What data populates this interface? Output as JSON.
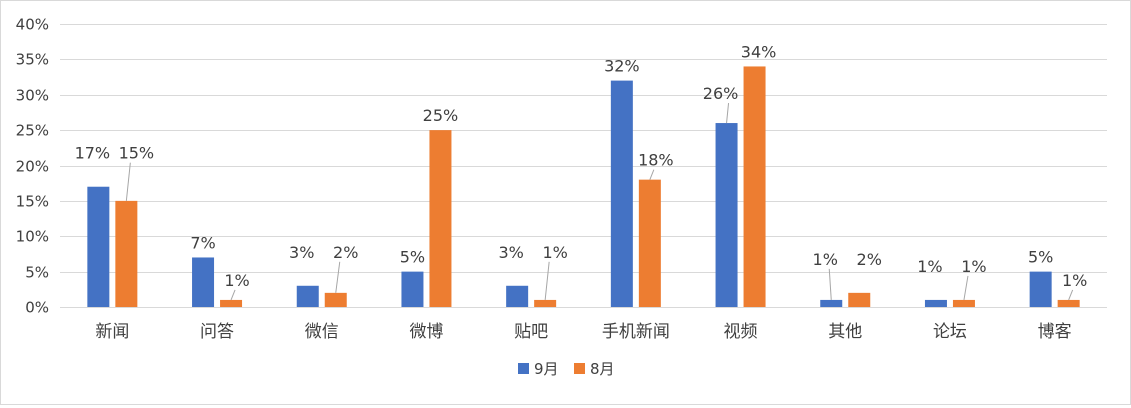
{
  "chart_data": {
    "type": "bar",
    "categories": [
      "新闻",
      "问答",
      "微信",
      "微博",
      "贴吧",
      "手机新闻",
      "视频",
      "其他",
      "论坛",
      "博客"
    ],
    "series": [
      {
        "name": "9月",
        "color": "#4472c4",
        "values": [
          17,
          7,
          3,
          5,
          3,
          32,
          26,
          1,
          1,
          5
        ],
        "labels": [
          "17%",
          "7%",
          "3%",
          "5%",
          "3%",
          "32%",
          "26%",
          "1%",
          "1%",
          "5%"
        ]
      },
      {
        "name": "8月",
        "color": "#ed7d31",
        "values": [
          15,
          1,
          2,
          25,
          1,
          18,
          34,
          2,
          1,
          1
        ],
        "labels": [
          "15%",
          "1%",
          "2%",
          "25%",
          "1%",
          "18%",
          "34%",
          "2%",
          "1%",
          "1%"
        ]
      }
    ],
    "y_ticks": [
      0,
      5,
      10,
      15,
      20,
      25,
      30,
      35,
      40
    ],
    "y_tick_labels": [
      "0%",
      "5%",
      "10%",
      "15%",
      "20%",
      "25%",
      "30%",
      "35%",
      "40%"
    ],
    "ylim": [
      0,
      40
    ],
    "grid": true,
    "legend_position": "bottom-center",
    "gridline_color": "#d9d9d9"
  }
}
